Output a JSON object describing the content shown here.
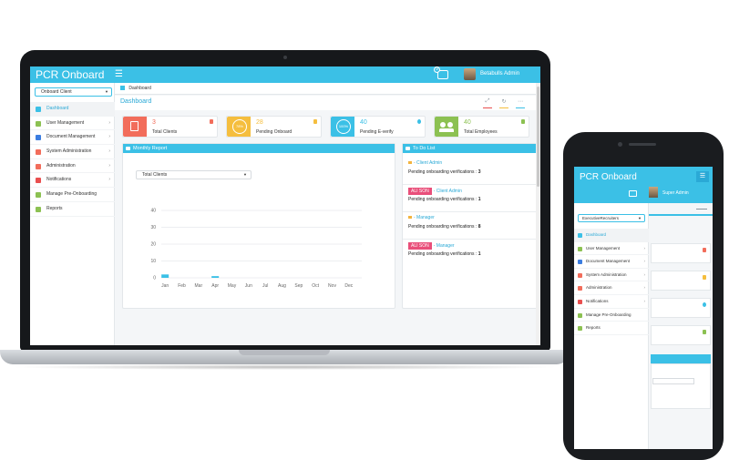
{
  "app": {
    "title": "PCR Onboard",
    "user_name": "Betabulls Admin",
    "message_count": "9"
  },
  "sidebar": {
    "client_select": "Onboard Client",
    "items": [
      {
        "label": "Dashboard",
        "icon": "home-icon",
        "active": true,
        "has_children": false
      },
      {
        "label": "User Management",
        "icon": "user-icon",
        "has_children": true
      },
      {
        "label": "Document Management",
        "icon": "document-icon",
        "has_children": true
      },
      {
        "label": "System Administration",
        "icon": "share-icon",
        "has_children": true
      },
      {
        "label": "Administration",
        "icon": "share-icon",
        "has_children": true
      },
      {
        "label": "Notifications",
        "icon": "warning-icon",
        "has_children": true
      },
      {
        "label": "Manage Pre-Onboarding",
        "icon": "users-icon",
        "has_children": false
      },
      {
        "label": "Reports",
        "icon": "users-icon",
        "has_children": false
      }
    ]
  },
  "breadcrumb": "Dashboard",
  "dashboard_title": "Dashboard",
  "stats": [
    {
      "value": "3",
      "label": "Total Clients",
      "color": "#f26d5b"
    },
    {
      "value": "28",
      "label": "Pending Onboard",
      "color": "#f5be3e",
      "ring": "78%"
    },
    {
      "value": "40",
      "label": "Pending E-verify",
      "color": "#3bc0e6",
      "ring": "100%"
    },
    {
      "value": "40",
      "label": "Total Employees",
      "color": "#8cc152"
    }
  ],
  "monthly_report": {
    "title": "Monthly Report",
    "select_value": "Total Clients"
  },
  "chart_data": {
    "type": "bar",
    "categories": [
      "Jan",
      "Feb",
      "Mar",
      "Apr",
      "May",
      "Jun",
      "Jul",
      "Aug",
      "Sep",
      "Oct",
      "Nov",
      "Dec"
    ],
    "values": [
      2,
      0,
      0,
      1,
      0,
      0,
      0,
      0,
      0,
      0,
      0,
      0
    ],
    "yticks": [
      0,
      10,
      20,
      30,
      40
    ],
    "ylim": [
      0,
      40
    ],
    "grid": true,
    "color": "#3bc0e6"
  },
  "todo": {
    "title": "To Do List",
    "items": [
      {
        "badge": "",
        "role": "- Client Admin",
        "text": "Pending onboarding verifications :",
        "count": "3"
      },
      {
        "badge": "ALI SON",
        "role": "- Client Admin",
        "text": "Pending onboarding verifications :",
        "count": "1"
      },
      {
        "badge": "",
        "role": "- Manager",
        "text": "Pending onboarding verifications :",
        "count": "8"
      },
      {
        "badge": "ALI SON",
        "role": "- Manager",
        "text": "Pending onboarding verifications :",
        "count": "1"
      }
    ]
  },
  "phone": {
    "title": "PCR Onboard",
    "user_name": "Super Admin",
    "client_select": "ExecutiveRecruiters",
    "items": [
      {
        "label": "Dashboard",
        "active": true
      },
      {
        "label": "User Management",
        "has_children": true
      },
      {
        "label": "Document Management",
        "has_children": true
      },
      {
        "label": "System Administration",
        "has_children": true
      },
      {
        "label": "Administration",
        "has_children": true
      },
      {
        "label": "Notifications",
        "has_children": true
      },
      {
        "label": "Manage Pre-Onboarding"
      },
      {
        "label": "Reports"
      }
    ]
  }
}
